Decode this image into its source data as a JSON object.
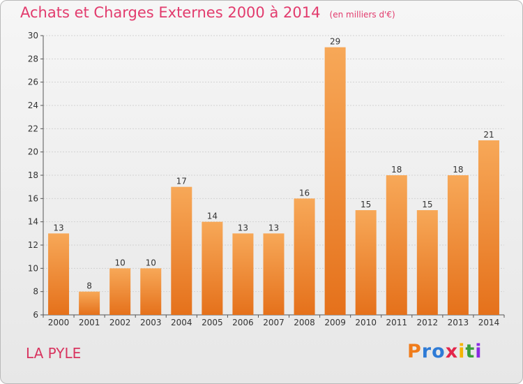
{
  "title": "Achats et Charges Externes 2000 à 2014",
  "unit_note": "(en milliers d'€)",
  "place": "LA PYLE",
  "logo": {
    "text": "Proxiti",
    "colors": [
      "#f07c1b",
      "#2e7bd6",
      "#2e7bd6",
      "#e3254a",
      "#f4b400",
      "#3aa03a",
      "#8a2be2"
    ]
  },
  "colors": {
    "bar_top": "#f7a858",
    "bar_bottom": "#e5711b",
    "title": "#e23b6d"
  },
  "chart_data": {
    "type": "bar",
    "title": "Achats et Charges Externes 2000 à 2014",
    "subtitle": "(en milliers d'€)",
    "categories": [
      "2000",
      "2001",
      "2002",
      "2003",
      "2004",
      "2005",
      "2006",
      "2007",
      "2008",
      "2009",
      "2010",
      "2011",
      "2012",
      "2013",
      "2014"
    ],
    "values": [
      13,
      8,
      10,
      10,
      17,
      14,
      13,
      13,
      16,
      29,
      15,
      18,
      15,
      18,
      21
    ],
    "ylim": [
      6,
      30
    ],
    "yticks": [
      6,
      8,
      10,
      12,
      14,
      16,
      18,
      20,
      22,
      24,
      26,
      28,
      30
    ],
    "grid": true,
    "xlabel": "",
    "ylabel": ""
  }
}
